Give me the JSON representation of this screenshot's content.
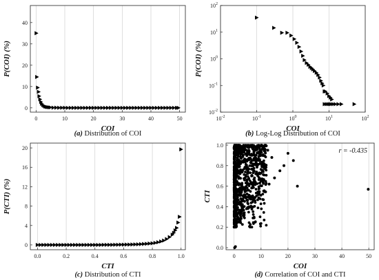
{
  "chart_data": [
    {
      "type": "scatter",
      "marker": "triangle-right",
      "caption_label": "(a)",
      "caption_text": "Distribution of COI",
      "xlabel": "COI",
      "ylabel": "P(COI) (%)",
      "xlim": [
        -2,
        52
      ],
      "ylim": [
        -2,
        48
      ],
      "xticks": [
        0,
        10,
        20,
        30,
        40,
        50
      ],
      "yticks": [
        0,
        10,
        20,
        30,
        40
      ],
      "xtick_labels": [
        "0",
        "10",
        "20",
        "30",
        "40",
        "50"
      ],
      "ytick_labels": [
        "0",
        "10",
        "20",
        "30",
        "40"
      ],
      "grid": "vertical",
      "x": [
        0.1,
        0.3,
        0.6,
        0.9,
        1.1,
        1.4,
        1.7,
        2.0,
        2.4,
        2.8,
        3.2,
        3.6,
        4.0,
        4.5,
        5.0,
        6,
        7,
        8,
        9,
        10,
        11,
        12,
        13,
        14,
        15,
        16,
        17,
        18,
        19,
        20,
        21,
        22,
        23,
        24,
        25,
        26,
        27,
        28,
        29,
        30,
        31,
        32,
        33,
        34,
        35,
        36,
        37,
        38,
        39,
        40,
        41,
        42,
        43,
        44,
        45,
        46,
        47,
        48,
        49,
        49.6
      ],
      "y": [
        35,
        14.5,
        9.5,
        7.5,
        5.5,
        4.0,
        2.8,
        1.9,
        1.3,
        0.9,
        0.6,
        0.45,
        0.35,
        0.25,
        0.2,
        0.1,
        0.08,
        0.06,
        0.05,
        0.04,
        0.03,
        0.03,
        0.02,
        0.02,
        0.02,
        0.02,
        0.02,
        0.02,
        0.02,
        0.02,
        0.02,
        0.02,
        0.02,
        0.02,
        0.02,
        0.02,
        0.02,
        0.02,
        0.02,
        0.02,
        0.02,
        0.02,
        0.02,
        0.02,
        0.02,
        0.02,
        0.02,
        0.02,
        0.02,
        0.02,
        0.02,
        0.02,
        0.02,
        0.02,
        0.02,
        0.02,
        0.02,
        0.02,
        0.02,
        0.02
      ]
    },
    {
      "type": "scatter",
      "marker": "triangle-right",
      "xscale": "log",
      "yscale": "log",
      "caption_label": "(b)",
      "caption_text": "Log-Log Distribution of COI",
      "xlabel": "COI",
      "ylabel": "P(COI) (%)",
      "xlim": [
        0.01,
        100
      ],
      "ylim": [
        0.01,
        100
      ],
      "xticks": [
        0.01,
        0.1,
        1,
        10,
        100
      ],
      "yticks": [
        0.01,
        0.1,
        1,
        10,
        100
      ],
      "xtick_labels": [
        [
          "10",
          "-2"
        ],
        [
          "10",
          "-1"
        ],
        [
          "10",
          "0"
        ],
        [
          "10",
          "1"
        ],
        [
          "10",
          "2"
        ]
      ],
      "ytick_labels": [
        [
          "10",
          "-2"
        ],
        [
          "10",
          "-1"
        ],
        [
          "10",
          "0"
        ],
        [
          "10",
          "1"
        ],
        [
          "10",
          "2"
        ]
      ],
      "grid": "vertical",
      "x": [
        0.1,
        0.3,
        0.5,
        0.7,
        0.9,
        1.1,
        1.3,
        1.5,
        1.7,
        1.9,
        2.1,
        2.4,
        2.7,
        3.0,
        3.3,
        3.6,
        4.0,
        4.5,
        5.0,
        5.5,
        6.0,
        6.5,
        7.0,
        7.5,
        8.0,
        9.0,
        10.0,
        11.0,
        12.0,
        7.5,
        8.5,
        9.5,
        10.5,
        11.5,
        13.0,
        15.0,
        18.0,
        22.0,
        50.0
      ],
      "y": [
        35,
        14.5,
        9.5,
        9.5,
        7.5,
        5.5,
        4.0,
        2.8,
        1.9,
        1.3,
        0.9,
        0.7,
        0.6,
        0.5,
        0.45,
        0.4,
        0.35,
        0.3,
        0.25,
        0.2,
        0.15,
        0.12,
        0.1,
        0.06,
        0.06,
        0.05,
        0.04,
        0.035,
        0.03,
        0.02,
        0.02,
        0.02,
        0.02,
        0.02,
        0.02,
        0.02,
        0.02,
        0.02,
        0.02
      ]
    },
    {
      "type": "scatter",
      "marker": "triangle-right",
      "caption_label": "(c)",
      "caption_text": "Distribution of CTI",
      "xlabel": "CTI",
      "ylabel": "P(CTI) (%)",
      "xlim": [
        -0.05,
        1.03
      ],
      "ylim": [
        -1,
        21
      ],
      "xticks": [
        0,
        0.2,
        0.4,
        0.6,
        0.8,
        1.0
      ],
      "yticks": [
        0,
        4,
        8,
        12,
        16,
        20
      ],
      "xtick_labels": [
        "0.0",
        "0.2",
        "0.4",
        "0.6",
        "0.8",
        "1.0"
      ],
      "ytick_labels": [
        "0",
        "4",
        "8",
        "12",
        "16",
        "20"
      ],
      "grid": "vertical",
      "x": [
        0.0,
        0.02,
        0.04,
        0.06,
        0.08,
        0.1,
        0.12,
        0.14,
        0.16,
        0.18,
        0.2,
        0.22,
        0.24,
        0.26,
        0.28,
        0.3,
        0.32,
        0.34,
        0.36,
        0.38,
        0.4,
        0.42,
        0.44,
        0.46,
        0.48,
        0.5,
        0.52,
        0.54,
        0.56,
        0.58,
        0.6,
        0.62,
        0.64,
        0.66,
        0.68,
        0.7,
        0.72,
        0.74,
        0.76,
        0.78,
        0.8,
        0.82,
        0.84,
        0.86,
        0.88,
        0.9,
        0.92,
        0.94,
        0.95,
        0.96,
        0.97,
        0.98,
        0.99,
        1.0
      ],
      "y": [
        0.0,
        0.0,
        0.0,
        0.0,
        0.0,
        0.0,
        0.0,
        0.0,
        0.0,
        0.0,
        0.0,
        0.0,
        0.0,
        0.0,
        0.0,
        0.0,
        0.0,
        0.0,
        0.0,
        0.0,
        0.0,
        0.0,
        0.0,
        0.01,
        0.01,
        0.02,
        0.02,
        0.03,
        0.03,
        0.04,
        0.05,
        0.06,
        0.07,
        0.08,
        0.1,
        0.12,
        0.15,
        0.18,
        0.22,
        0.27,
        0.33,
        0.42,
        0.55,
        0.7,
        0.9,
        1.2,
        1.6,
        2.1,
        2.5,
        3.0,
        3.5,
        4.6,
        5.8,
        19.7
      ]
    },
    {
      "type": "scatter",
      "marker": "circle",
      "caption_label": "(d)",
      "caption_text": "Correlation of COI and CTI",
      "xlabel": "COI",
      "ylabel": "CTI",
      "xlim": [
        -3,
        52
      ],
      "ylim": [
        -0.02,
        1.02
      ],
      "xticks": [
        0,
        10,
        20,
        30,
        40,
        50
      ],
      "yticks": [
        0.0,
        0.2,
        0.4,
        0.6,
        0.8,
        1.0
      ],
      "xtick_labels": [
        "0",
        "10",
        "20",
        "30",
        "40",
        "50"
      ],
      "ytick_labels": [
        "0.0",
        "0.2",
        "0.4",
        "0.6",
        "0.8",
        "1.0"
      ],
      "grid": "vertical",
      "annotation": "r = -0.435",
      "outliers": {
        "x": [
          0.2,
          0.5,
          49.8,
          23.5,
          22.0,
          20.0,
          18.5,
          17.0,
          15.0,
          14.0,
          12.5,
          13.0,
          11.0,
          9.5,
          10.5,
          8.0,
          7.5,
          6.5
        ],
        "y": [
          0.0,
          0.01,
          0.57,
          0.6,
          0.85,
          0.92,
          0.8,
          0.75,
          0.68,
          0.88,
          0.95,
          0.62,
          0.78,
          0.72,
          0.9,
          0.85,
          0.66,
          0.7
        ]
      }
    }
  ]
}
